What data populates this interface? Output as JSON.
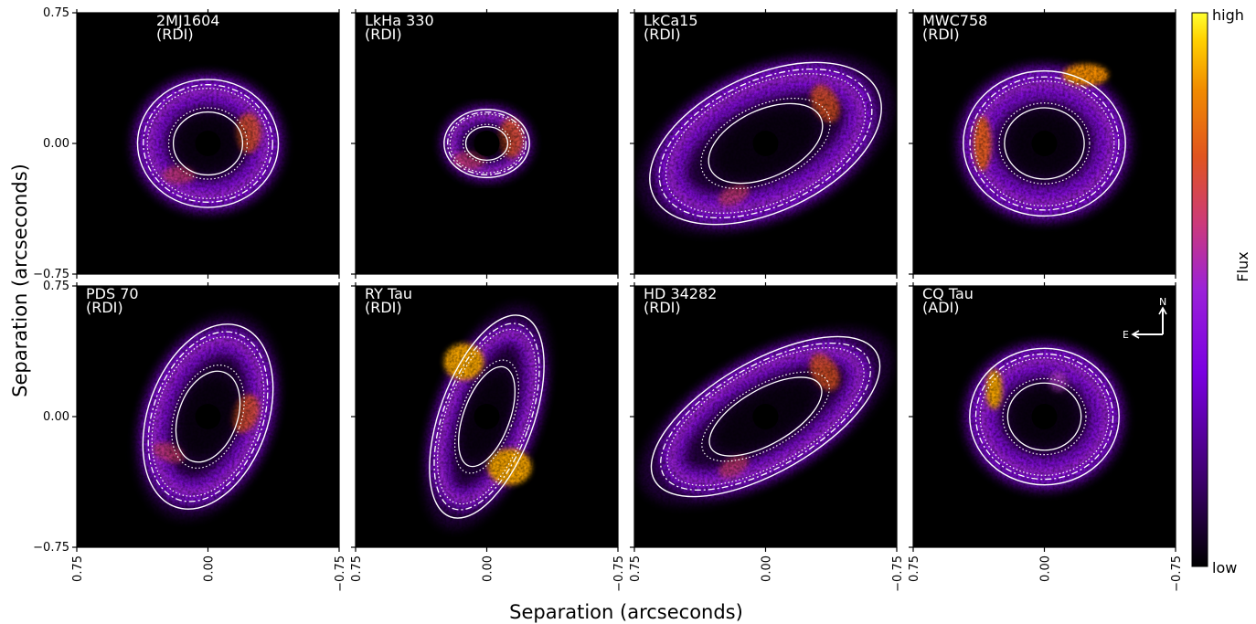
{
  "chart_data": {
    "type": "heatmap",
    "xlabel": "Separation (arcseconds)",
    "ylabel": "Separation (arcseconds)",
    "x_ticks": [
      "0.75",
      "0.00",
      "−0.75"
    ],
    "y_ticks": [
      "0.75",
      "0.00",
      "−0.75"
    ],
    "xlim": [
      0.75,
      -0.75
    ],
    "ylim": [
      -0.75,
      0.75
    ],
    "colorbar": {
      "label": "Flux",
      "high_label": "high",
      "low_label": "low",
      "colormap": "gnuplot",
      "colors": [
        "#000000",
        "#3a0068",
        "#7a00e0",
        "#9b21d8",
        "#cc3a7a",
        "#e0541f",
        "#f08a00",
        "#ffd000",
        "#ffff30"
      ]
    },
    "compass": {
      "north": "N",
      "east": "E"
    },
    "panels": [
      {
        "name": "2MJ1604",
        "method": "(RDI)",
        "morph": "ring",
        "rx": 0.33,
        "ry": 0.3,
        "tilt": 0,
        "blobs": []
      },
      {
        "name": "LkHa 330",
        "method": "(RDI)",
        "morph": "ringinner",
        "rx": 0.2,
        "ry": 0.16,
        "tilt": 0,
        "blobs": []
      },
      {
        "name": "LkCa15",
        "method": "(RDI)",
        "morph": "ellipse",
        "rx": 0.58,
        "ry": 0.32,
        "tilt": -25,
        "blobs": []
      },
      {
        "name": "MWC758",
        "method": "(RDI)",
        "morph": "arc",
        "rx": 0.38,
        "ry": 0.34,
        "tilt": 0,
        "blobs": []
      },
      {
        "name": "PDS 70",
        "method": "(RDI)",
        "morph": "ellipse",
        "rx": 0.28,
        "ry": 0.45,
        "tilt": 20,
        "blobs": []
      },
      {
        "name": "RY Tau",
        "method": "(RDI)",
        "morph": "lobes",
        "rx": 0.22,
        "ry": 0.5,
        "tilt": 20,
        "blobs": []
      },
      {
        "name": "HD 34282",
        "method": "(RDI)",
        "morph": "ellipse",
        "rx": 0.6,
        "ry": 0.26,
        "tilt": -30,
        "blobs": []
      },
      {
        "name": "CQ Tau",
        "method": "(ADI)",
        "morph": "spots",
        "rx": 0.35,
        "ry": 0.32,
        "tilt": 0,
        "blobs": []
      }
    ]
  }
}
